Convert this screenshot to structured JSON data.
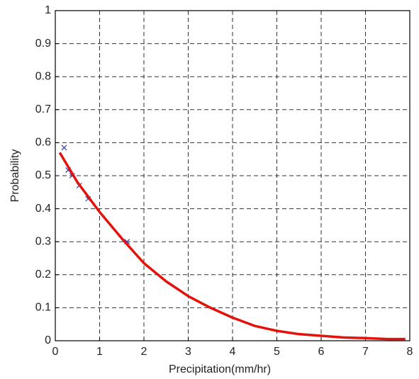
{
  "chart_data": {
    "type": "line",
    "x_label": "Precipitation(mm/hr)",
    "y_label": "Probability",
    "xlim": [
      0,
      8
    ],
    "ylim": [
      0,
      1
    ],
    "xticks": [
      0,
      1,
      2,
      3,
      4,
      5,
      6,
      7,
      8
    ],
    "yticks": [
      0,
      0.1,
      0.2,
      0.3,
      0.4,
      0.5,
      0.6,
      0.7,
      0.8,
      0.9,
      1
    ],
    "grid": true,
    "series": [
      {
        "style": "marker",
        "marker": "x",
        "color": "#3a3aa8",
        "x": [
          0.2,
          0.29,
          0.38,
          0.54,
          0.74,
          1.62
        ],
        "values": [
          0.585,
          0.517,
          0.5,
          0.47,
          0.43,
          0.3
        ]
      },
      {
        "style": "line",
        "color": "#e3120b",
        "x": [
          0.1,
          0.5,
          1,
          1.5,
          2,
          2.5,
          3,
          3.5,
          4,
          4.5,
          5,
          5.5,
          6,
          6.5,
          7,
          7.5,
          7.9
        ],
        "values": [
          0.57,
          0.48,
          0.39,
          0.31,
          0.235,
          0.18,
          0.135,
          0.1,
          0.07,
          0.045,
          0.03,
          0.02,
          0.015,
          0.01,
          0.008,
          0.005,
          0.005
        ]
      }
    ]
  }
}
